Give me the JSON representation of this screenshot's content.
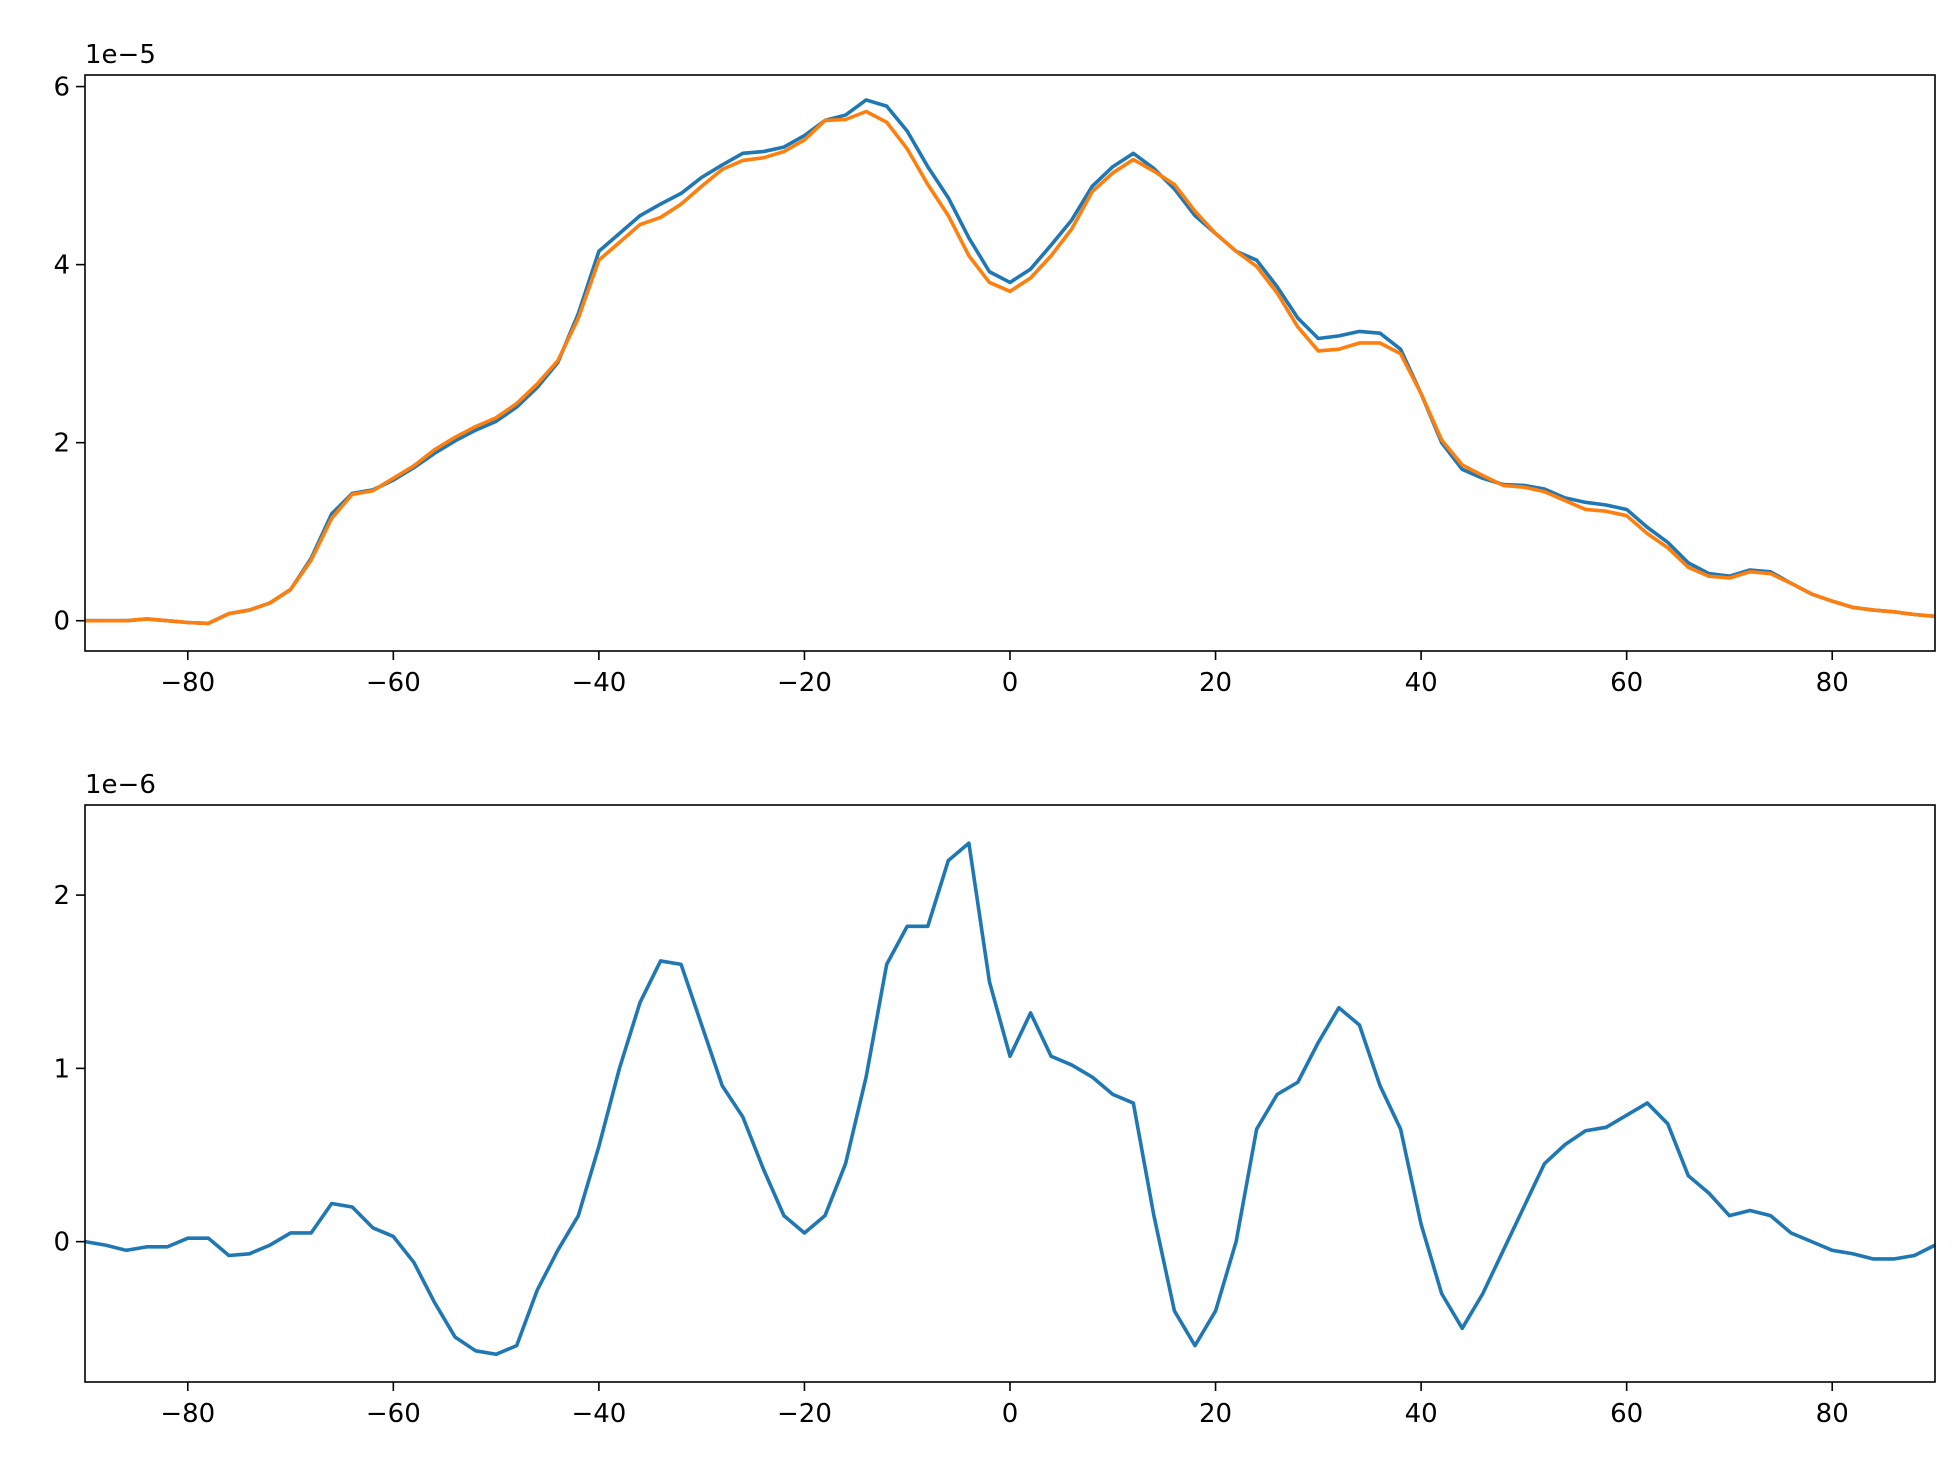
{
  "chart_data": [
    {
      "type": "line",
      "offset_label": "1e−5",
      "x": [
        -90,
        -88,
        -86,
        -84,
        -82,
        -80,
        -78,
        -76,
        -74,
        -72,
        -70,
        -68,
        -66,
        -64,
        -62,
        -60,
        -58,
        -56,
        -54,
        -52,
        -50,
        -48,
        -46,
        -44,
        -42,
        -40,
        -38,
        -36,
        -34,
        -32,
        -30,
        -28,
        -26,
        -24,
        -22,
        -20,
        -18,
        -16,
        -14,
        -12,
        -10,
        -8,
        -6,
        -4,
        -2,
        0,
        2,
        4,
        6,
        8,
        10,
        12,
        14,
        16,
        18,
        20,
        22,
        24,
        26,
        28,
        30,
        32,
        34,
        36,
        38,
        40,
        42,
        44,
        46,
        48,
        50,
        52,
        54,
        56,
        58,
        60,
        62,
        64,
        66,
        68,
        70,
        72,
        74,
        76,
        78,
        80,
        82,
        84,
        86,
        88,
        90
      ],
      "series": [
        {
          "color": "#1f77b4",
          "values": [
            0.0,
            0.0,
            0.0,
            0.02,
            0.0,
            -0.02,
            -0.03,
            0.08,
            0.12,
            0.2,
            0.35,
            0.7,
            1.2,
            1.43,
            1.47,
            1.58,
            1.72,
            1.88,
            2.02,
            2.14,
            2.24,
            2.4,
            2.62,
            2.9,
            3.45,
            4.15,
            4.35,
            4.55,
            4.68,
            4.8,
            4.98,
            5.12,
            5.25,
            5.27,
            5.32,
            5.45,
            5.62,
            5.68,
            5.85,
            5.78,
            5.5,
            5.1,
            4.75,
            4.3,
            3.92,
            3.8,
            3.95,
            4.22,
            4.5,
            4.88,
            5.1,
            5.25,
            5.08,
            4.85,
            4.55,
            4.35,
            4.15,
            4.05,
            3.75,
            3.4,
            3.17,
            3.2,
            3.25,
            3.23,
            3.05,
            2.55,
            2.0,
            1.7,
            1.6,
            1.53,
            1.52,
            1.48,
            1.38,
            1.33,
            1.3,
            1.25,
            1.05,
            0.88,
            0.65,
            0.53,
            0.5,
            0.57,
            0.55,
            0.42,
            0.3,
            0.22,
            0.15,
            0.12,
            0.1,
            0.07,
            0.05
          ]
        },
        {
          "color": "#ff7f0e",
          "values": [
            0.0,
            0.0,
            0.0,
            0.02,
            0.0,
            -0.02,
            -0.03,
            0.08,
            0.12,
            0.2,
            0.35,
            0.68,
            1.15,
            1.42,
            1.46,
            1.6,
            1.74,
            1.92,
            2.06,
            2.18,
            2.28,
            2.44,
            2.66,
            2.92,
            3.4,
            4.05,
            4.25,
            4.45,
            4.53,
            4.68,
            4.88,
            5.07,
            5.17,
            5.2,
            5.27,
            5.4,
            5.62,
            5.63,
            5.72,
            5.6,
            5.3,
            4.9,
            4.55,
            4.1,
            3.8,
            3.7,
            3.85,
            4.1,
            4.4,
            4.82,
            5.03,
            5.18,
            5.05,
            4.9,
            4.6,
            4.35,
            4.15,
            3.98,
            3.68,
            3.3,
            3.03,
            3.05,
            3.12,
            3.12,
            3.0,
            2.55,
            2.03,
            1.75,
            1.63,
            1.52,
            1.5,
            1.45,
            1.35,
            1.25,
            1.23,
            1.18,
            0.98,
            0.82,
            0.6,
            0.5,
            0.48,
            0.55,
            0.53,
            0.42,
            0.3,
            0.22,
            0.15,
            0.12,
            0.1,
            0.07,
            0.05
          ]
        }
      ],
      "xlim": [
        -90,
        90
      ],
      "ylim": [
        -0.34,
        6.13
      ],
      "xticks": [
        {
          "value": -80,
          "label": "−80"
        },
        {
          "value": -60,
          "label": "−60"
        },
        {
          "value": -40,
          "label": "−40"
        },
        {
          "value": -20,
          "label": "−20"
        },
        0,
        20,
        40,
        60,
        80
      ],
      "yticks": [
        0,
        2,
        4,
        6
      ]
    },
    {
      "type": "line",
      "offset_label": "1e−6",
      "x": [
        -90,
        -88,
        -86,
        -84,
        -82,
        -80,
        -78,
        -76,
        -74,
        -72,
        -70,
        -68,
        -66,
        -64,
        -62,
        -60,
        -58,
        -56,
        -54,
        -52,
        -50,
        -48,
        -46,
        -44,
        -42,
        -40,
        -38,
        -36,
        -34,
        -32,
        -30,
        -28,
        -26,
        -24,
        -22,
        -20,
        -18,
        -16,
        -14,
        -12,
        -10,
        -8,
        -6,
        -4,
        -2,
        0,
        2,
        4,
        6,
        8,
        10,
        12,
        14,
        16,
        18,
        20,
        22,
        24,
        26,
        28,
        30,
        32,
        34,
        36,
        38,
        40,
        42,
        44,
        46,
        48,
        50,
        52,
        54,
        56,
        58,
        60,
        62,
        64,
        66,
        68,
        70,
        72,
        74,
        76,
        78,
        80,
        82,
        84,
        86,
        88,
        90
      ],
      "series": [
        {
          "color": "#1f77b4",
          "values": [
            0.0,
            -0.02,
            -0.05,
            -0.03,
            -0.03,
            0.02,
            0.02,
            -0.08,
            -0.07,
            -0.02,
            0.05,
            0.05,
            0.22,
            0.2,
            0.08,
            0.03,
            -0.12,
            -0.35,
            -0.55,
            -0.63,
            -0.65,
            -0.6,
            -0.28,
            -0.05,
            0.15,
            0.55,
            1.0,
            1.38,
            1.62,
            1.6,
            1.25,
            0.9,
            0.72,
            0.42,
            0.15,
            0.05,
            0.15,
            0.45,
            0.95,
            1.6,
            1.82,
            1.82,
            2.2,
            2.3,
            1.5,
            1.07,
            1.32,
            1.07,
            1.02,
            0.95,
            0.85,
            0.8,
            0.15,
            -0.4,
            -0.6,
            -0.4,
            0.0,
            0.65,
            0.85,
            0.92,
            1.15,
            1.35,
            1.25,
            0.9,
            0.65,
            0.1,
            -0.3,
            -0.5,
            -0.3,
            -0.05,
            0.2,
            0.45,
            0.56,
            0.64,
            0.66,
            0.73,
            0.8,
            0.68,
            0.38,
            0.28,
            0.15,
            0.18,
            0.15,
            0.05,
            0.0,
            -0.05,
            -0.07,
            -0.1,
            -0.1,
            -0.08,
            -0.02
          ]
        }
      ],
      "xlim": [
        -90,
        90
      ],
      "ylim": [
        -0.81,
        2.52
      ],
      "xticks": [
        {
          "value": -80,
          "label": "−80"
        },
        {
          "value": -60,
          "label": "−60"
        },
        {
          "value": -40,
          "label": "−40"
        },
        {
          "value": -20,
          "label": "−20"
        },
        0,
        20,
        40,
        60,
        80
      ],
      "yticks": [
        0,
        1,
        2
      ]
    }
  ]
}
